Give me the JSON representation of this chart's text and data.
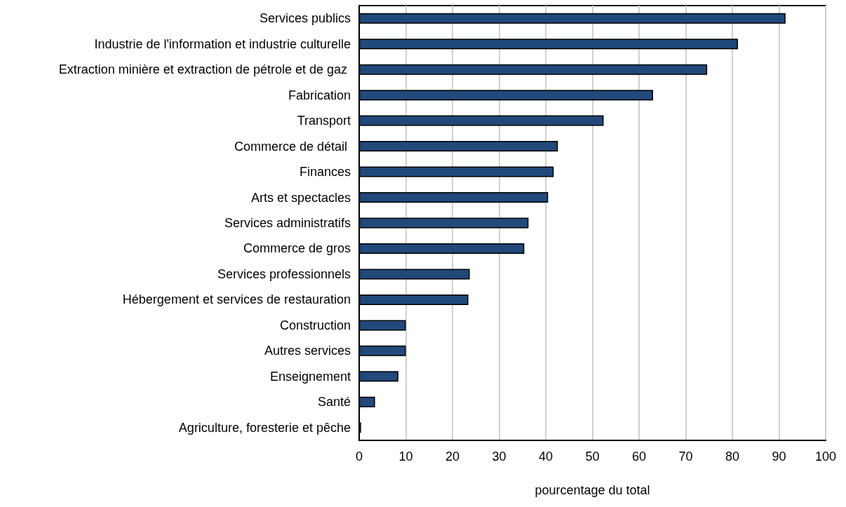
{
  "chart_data": {
    "type": "bar",
    "orientation": "horizontal",
    "xlabel": "pourcentage du total",
    "categories": [
      "Services publics",
      "Industrie de l'information et industrie culturelle",
      "Extraction minière et extraction de pétrole et de gaz ",
      "Fabrication",
      "Transport",
      "Commerce de détail ",
      "Finances",
      "Arts et spectacles",
      "Services administratifs",
      "Commerce de gros",
      "Services professionnels",
      "Hébergement et services de restauration",
      "Construction",
      "Autres services",
      "Enseignement",
      "Santé",
      "Agriculture, foresterie et pêche"
    ],
    "values": [
      91.4,
      81.2,
      74.6,
      63.0,
      52.4,
      42.6,
      41.7,
      40.5,
      36.3,
      35.4,
      23.7,
      23.4,
      10.0,
      10.0,
      8.4,
      3.4,
      0.4
    ],
    "color": "#21497a",
    "xlim": [
      0,
      100
    ],
    "xticks": [
      0,
      10,
      20,
      30,
      40,
      50,
      60,
      70,
      80,
      90,
      100
    ],
    "grid": "x"
  }
}
